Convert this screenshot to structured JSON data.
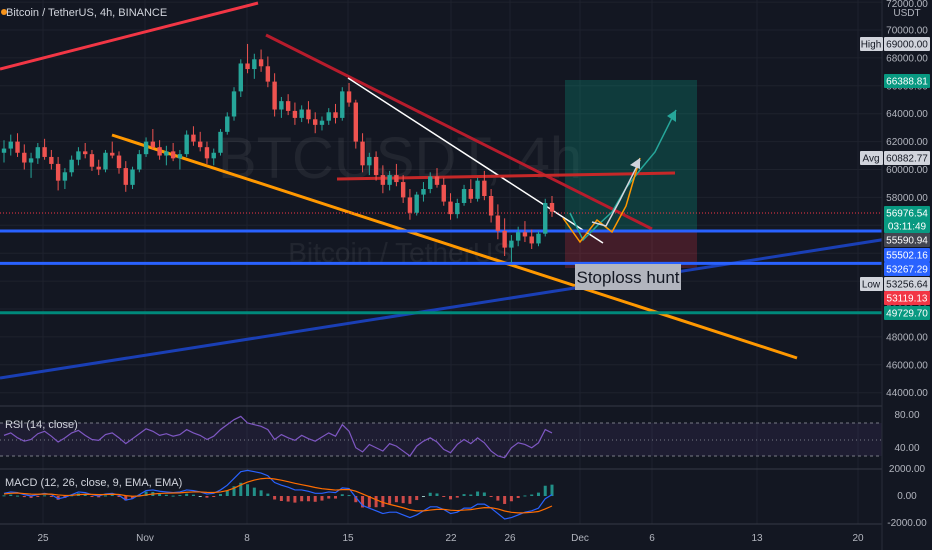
{
  "chart_data": {
    "type": "candlestick",
    "symbol_title": "Bitcoin / TetherUS, 4h, BINANCE",
    "watermark_symbol": "BTCUSDT, 4h",
    "watermark_name": "Bitcoin / TetherUS",
    "currency": "USDT",
    "ylim": [
      41500,
      72000
    ],
    "y_ticks": [
      44000,
      46000,
      48000,
      50000,
      52000,
      54000,
      56000,
      58000,
      60000,
      62000,
      64000,
      66000,
      68000,
      70000,
      72000
    ],
    "y_tick_labels": [
      "44000.00",
      "46000.00",
      "48000.00",
      "50000.00",
      "52000.00",
      "54000.00",
      "56000.00",
      "58000.00",
      "60000.00",
      "62000.00",
      "64000.00",
      "66000.00",
      "68000.00",
      "70000.00",
      "72000.00"
    ],
    "x_tick_labels": [
      "25",
      "Nov",
      "8",
      "15",
      "22",
      "26",
      "Dec",
      "6",
      "13",
      "20"
    ],
    "candles_approx_ohlc": [
      [
        61200,
        62100,
        60500,
        61500
      ],
      [
        61500,
        62500,
        61000,
        62000
      ],
      [
        62000,
        62600,
        60900,
        61200
      ],
      [
        61200,
        61800,
        60000,
        60500
      ],
      [
        60500,
        61200,
        59400,
        60800
      ],
      [
        60800,
        61900,
        60400,
        61600
      ],
      [
        61600,
        62200,
        60700,
        60900
      ],
      [
        60900,
        61400,
        60000,
        60400
      ],
      [
        60400,
        60900,
        58500,
        59200
      ],
      [
        59200,
        60100,
        58600,
        59800
      ],
      [
        59800,
        61000,
        59500,
        60700
      ],
      [
        60700,
        61600,
        60300,
        61300
      ],
      [
        61300,
        61900,
        60800,
        61100
      ],
      [
        61100,
        61400,
        59900,
        60200
      ],
      [
        60200,
        60700,
        59600,
        60000
      ],
      [
        60000,
        61400,
        59800,
        61200
      ],
      [
        61200,
        62000,
        60800,
        61000
      ],
      [
        61000,
        61300,
        59700,
        60100
      ],
      [
        60100,
        60600,
        58400,
        58900
      ],
      [
        58900,
        60200,
        58600,
        60000
      ],
      [
        60000,
        61400,
        59800,
        61100
      ],
      [
        61100,
        62300,
        60900,
        62000
      ],
      [
        62000,
        62900,
        61400,
        61600
      ],
      [
        61600,
        62100,
        60700,
        61000
      ],
      [
        61000,
        61700,
        60300,
        61300
      ],
      [
        61300,
        61900,
        60600,
        60800
      ],
      [
        60800,
        61400,
        60000,
        61100
      ],
      [
        61100,
        62800,
        60900,
        62500
      ],
      [
        62500,
        63100,
        61700,
        62000
      ],
      [
        62000,
        62700,
        61300,
        61600
      ],
      [
        61600,
        62000,
        60400,
        60800
      ],
      [
        60800,
        61500,
        60300,
        61200
      ],
      [
        61200,
        62900,
        61000,
        62700
      ],
      [
        62700,
        64100,
        62500,
        63800
      ],
      [
        63800,
        65900,
        63500,
        65600
      ],
      [
        65600,
        67900,
        65200,
        67600
      ],
      [
        67600,
        69000,
        66900,
        67200
      ],
      [
        67200,
        68300,
        66500,
        67900
      ],
      [
        67900,
        68600,
        67000,
        67400
      ],
      [
        67400,
        68100,
        65900,
        66300
      ],
      [
        66300,
        66900,
        63800,
        64300
      ],
      [
        64300,
        65200,
        63700,
        64900
      ],
      [
        64900,
        65400,
        63900,
        64200
      ],
      [
        64200,
        64800,
        63200,
        63700
      ],
      [
        63700,
        64600,
        63400,
        64300
      ],
      [
        64300,
        64900,
        63300,
        63600
      ],
      [
        63600,
        64100,
        62600,
        63200
      ],
      [
        63200,
        63800,
        62800,
        63500
      ],
      [
        63500,
        64400,
        63200,
        64100
      ],
      [
        64100,
        64700,
        63300,
        63700
      ],
      [
        63700,
        65900,
        63500,
        65600
      ],
      [
        65600,
        66200,
        64500,
        64800
      ],
      [
        64800,
        65000,
        61500,
        62000
      ],
      [
        62000,
        62600,
        59800,
        60300
      ],
      [
        60300,
        61200,
        59600,
        60900
      ],
      [
        60900,
        61300,
        59200,
        59600
      ],
      [
        59600,
        60300,
        58300,
        58900
      ],
      [
        58900,
        59900,
        58500,
        59600
      ],
      [
        59600,
        60400,
        58800,
        59100
      ],
      [
        59100,
        59600,
        57600,
        58000
      ],
      [
        58000,
        58600,
        56400,
        56900
      ],
      [
        56900,
        58400,
        56700,
        58200
      ],
      [
        58200,
        59100,
        57700,
        58600
      ],
      [
        58600,
        59800,
        58300,
        59500
      ],
      [
        59500,
        60100,
        58700,
        58900
      ],
      [
        58900,
        59400,
        57400,
        57700
      ],
      [
        57700,
        58300,
        56400,
        56800
      ],
      [
        56800,
        57900,
        56500,
        57600
      ],
      [
        57600,
        58900,
        57400,
        58600
      ],
      [
        58600,
        59300,
        57600,
        57900
      ],
      [
        57900,
        59400,
        57700,
        59200
      ],
      [
        59200,
        59900,
        57800,
        58100
      ],
      [
        58100,
        58600,
        56200,
        56700
      ],
      [
        56700,
        57500,
        55000,
        55600
      ],
      [
        55600,
        56500,
        53800,
        54400
      ],
      [
        54400,
        55300,
        53300,
        54900
      ],
      [
        54900,
        55900,
        54500,
        55500
      ],
      [
        55500,
        56300,
        54800,
        55200
      ],
      [
        55200,
        55700,
        54300,
        54700
      ],
      [
        54700,
        55600,
        54500,
        55400
      ],
      [
        55400,
        57900,
        55200,
        57600
      ],
      [
        57600,
        58100,
        56600,
        56977
      ]
    ],
    "price_tags": [
      {
        "label": "High",
        "value_text": "69000.00",
        "value": 69000,
        "kind": "high"
      },
      {
        "label": "",
        "value_text": "66388.81",
        "value": 66388.81,
        "kind": "green"
      },
      {
        "label": "Avg",
        "value_text": "60882.77",
        "value": 60882.77,
        "kind": "avg"
      },
      {
        "label": "",
        "value_text": "56976.54",
        "value": 56976.54,
        "kind": "last"
      },
      {
        "label": "",
        "value_text": "03:11:49",
        "value": 56976.54,
        "kind": "countdown"
      },
      {
        "label": "",
        "value_text": "55590.94",
        "value": 55590.94,
        "kind": "grey"
      },
      {
        "label": "",
        "value_text": "55502.16",
        "value": 55502.16,
        "kind": "blue"
      },
      {
        "label": "",
        "value_text": "53267.29",
        "value": 53267.29,
        "kind": "blue"
      },
      {
        "label": "Low",
        "value_text": "53256.64",
        "value": 53256.64,
        "kind": "low"
      },
      {
        "label": "",
        "value_text": "53119.13",
        "value": 53119.13,
        "kind": "red"
      },
      {
        "label": "",
        "value_text": "49729.70",
        "value": 49729.7,
        "kind": "teal"
      }
    ],
    "horizontal_levels": [
      {
        "price": 55590.94,
        "color": "#2962ff"
      },
      {
        "price": 53267.29,
        "color": "#2962ff"
      },
      {
        "price": 49729.7,
        "color": "#00897b"
      }
    ],
    "annotation": "Stoploss hunt",
    "rsi": {
      "title": "RSI (14, close)",
      "ticks": [
        "80.00",
        "40.00"
      ],
      "values": [
        55,
        58,
        52,
        48,
        50,
        57,
        60,
        54,
        47,
        52,
        58,
        61,
        55,
        50,
        49,
        56,
        58,
        52,
        45,
        51,
        57,
        63,
        60,
        55,
        57,
        54,
        56,
        62,
        58,
        55,
        50,
        54,
        62,
        68,
        74,
        78,
        70,
        68,
        66,
        62,
        50,
        56,
        52,
        49,
        55,
        51,
        48,
        53,
        58,
        54,
        68,
        60,
        40,
        35,
        44,
        40,
        36,
        45,
        42,
        36,
        30,
        42,
        48,
        52,
        47,
        38,
        34,
        44,
        50,
        45,
        52,
        46,
        36,
        30,
        28,
        40,
        46,
        44,
        40,
        46,
        62,
        58
      ]
    },
    "macd": {
      "title": "MACD (12, 26, close, 9, EMA, EMA)",
      "ticks": [
        "2000.00",
        "0.00",
        "-2000.00"
      ],
      "macd": [
        200,
        300,
        250,
        100,
        0,
        100,
        200,
        100,
        -200,
        -100,
        100,
        300,
        250,
        100,
        0,
        150,
        200,
        50,
        -300,
        -200,
        100,
        400,
        450,
        350,
        300,
        250,
        300,
        450,
        400,
        300,
        150,
        200,
        450,
        800,
        1300,
        1800,
        1900,
        1800,
        1700,
        1500,
        1000,
        800,
        650,
        450,
        450,
        350,
        200,
        200,
        300,
        250,
        600,
        550,
        -100,
        -700,
        -900,
        -1100,
        -1300,
        -1200,
        -1200,
        -1400,
        -1600,
        -1400,
        -1100,
        -800,
        -800,
        -1000,
        -1300,
        -1200,
        -900,
        -900,
        -600,
        -600,
        -900,
        -1300,
        -1700,
        -1600,
        -1400,
        -1200,
        -1100,
        -900,
        -200,
        100
      ],
      "signal": [
        150,
        200,
        220,
        180,
        140,
        130,
        150,
        140,
        80,
        40,
        50,
        100,
        130,
        120,
        100,
        110,
        130,
        110,
        30,
        -20,
        0,
        80,
        150,
        190,
        210,
        220,
        230,
        280,
        300,
        300,
        270,
        260,
        300,
        400,
        580,
        820,
        1030,
        1180,
        1280,
        1320,
        1260,
        1170,
        1060,
        940,
        840,
        740,
        630,
        540,
        490,
        440,
        470,
        480,
        360,
        150,
        -60,
        -270,
        -480,
        -620,
        -740,
        -870,
        -1020,
        -1100,
        -1100,
        -1040,
        -990,
        -990,
        -1050,
        -1080,
        -1040,
        -1010,
        -930,
        -860,
        -870,
        -960,
        -1110,
        -1210,
        -1250,
        -1240,
        -1210,
        -1150,
        -960,
        -740
      ]
    }
  }
}
